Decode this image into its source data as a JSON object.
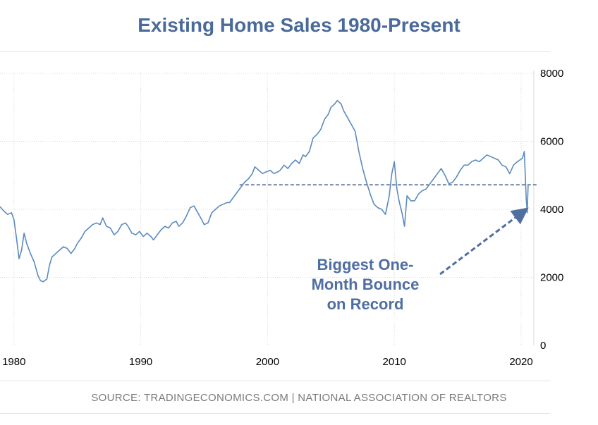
{
  "chart_data": {
    "type": "line",
    "title": "Existing Home Sales 1980-Present",
    "source": "SOURCE: TRADINGECONOMICS.COM | NATIONAL ASSOCIATION OF REALTORS",
    "annotation": [
      "Biggest One-",
      "Month Bounce",
      "on Record"
    ],
    "xlim": [
      1978.9,
      2021.0
    ],
    "ylim": [
      0,
      8000
    ],
    "x_ticks": [
      1980,
      1990,
      2000,
      2010,
      2020
    ],
    "y_ticks": [
      0,
      2000,
      4000,
      6000,
      8000
    ],
    "y_axis_side": "right",
    "grid": true,
    "reference_line": {
      "value": 4720,
      "from_x": 1997.8,
      "style": "dashed"
    },
    "colors": {
      "line": "#5b8bbd",
      "title": "#4a6a9b",
      "annotation": "#4f6ea1",
      "grid": "#d9d9d9",
      "axis_text": "#000000",
      "source": "#7a7a7a"
    },
    "series": [
      {
        "x": [
          1978.9,
          1979.2,
          1979.5,
          1979.8,
          1980.0,
          1980.2,
          1980.4,
          1980.6,
          1980.8,
          1981.0,
          1981.3,
          1981.6,
          1981.9,
          1982.1,
          1982.3,
          1982.6,
          1982.8,
          1983.0,
          1983.3,
          1983.6,
          1983.9,
          1984.2,
          1984.5,
          1984.8,
          1985.0,
          1985.3,
          1985.6,
          1985.9,
          1986.2,
          1986.5,
          1986.8,
          1987.0,
          1987.3,
          1987.6,
          1987.9,
          1988.2,
          1988.5,
          1988.8,
          1989.0,
          1989.3,
          1989.6,
          1989.9,
          1990.2,
          1990.5,
          1990.8,
          1991.0,
          1991.3,
          1991.6,
          1991.9,
          1992.2,
          1992.5,
          1992.8,
          1993.0,
          1993.3,
          1993.6,
          1993.9,
          1994.2,
          1994.5,
          1994.8,
          1995.0,
          1995.3,
          1995.6,
          1995.9,
          1996.2,
          1996.5,
          1996.8,
          1997.0,
          1997.3,
          1997.6,
          1997.9,
          1998.2,
          1998.5,
          1998.8,
          1999.0,
          1999.3,
          1999.6,
          1999.9,
          2000.2,
          2000.5,
          2000.8,
          2001.0,
          2001.3,
          2001.6,
          2001.9,
          2002.2,
          2002.5,
          2002.8,
          2003.0,
          2003.3,
          2003.6,
          2003.9,
          2004.2,
          2004.5,
          2004.8,
          2005.0,
          2005.3,
          2005.5,
          2005.8,
          2006.0,
          2006.3,
          2006.6,
          2006.9,
          2007.2,
          2007.5,
          2007.8,
          2008.1,
          2008.4,
          2008.7,
          2009.0,
          2009.3,
          2009.6,
          2009.8,
          2010.0,
          2010.2,
          2010.4,
          2010.6,
          2010.8,
          2011.0,
          2011.3,
          2011.6,
          2011.9,
          2012.2,
          2012.5,
          2012.8,
          2013.1,
          2013.4,
          2013.7,
          2014.0,
          2014.3,
          2014.6,
          2014.9,
          2015.2,
          2015.5,
          2015.8,
          2016.1,
          2016.4,
          2016.7,
          2017.0,
          2017.3,
          2017.6,
          2017.9,
          2018.2,
          2018.5,
          2018.8,
          2019.1,
          2019.4,
          2019.7,
          2019.9,
          2020.1,
          2020.25,
          2020.4,
          2020.48,
          2020.55
        ],
        "values": [
          4080,
          3950,
          3850,
          3900,
          3700,
          3150,
          2550,
          2800,
          3300,
          3000,
          2700,
          2450,
          2050,
          1900,
          1870,
          1950,
          2350,
          2600,
          2700,
          2800,
          2900,
          2850,
          2700,
          2850,
          3000,
          3150,
          3350,
          3450,
          3550,
          3600,
          3550,
          3750,
          3500,
          3450,
          3250,
          3350,
          3550,
          3600,
          3500,
          3300,
          3250,
          3350,
          3200,
          3300,
          3200,
          3100,
          3250,
          3400,
          3500,
          3450,
          3600,
          3650,
          3500,
          3600,
          3800,
          4050,
          4100,
          3900,
          3700,
          3550,
          3600,
          3900,
          4000,
          4100,
          4150,
          4200,
          4200,
          4350,
          4500,
          4650,
          4800,
          4900,
          5050,
          5250,
          5150,
          5050,
          5100,
          5150,
          5050,
          5100,
          5150,
          5300,
          5200,
          5350,
          5450,
          5350,
          5600,
          5550,
          5700,
          6100,
          6200,
          6350,
          6650,
          6800,
          7000,
          7100,
          7200,
          7100,
          6900,
          6700,
          6500,
          6300,
          5700,
          5200,
          4800,
          4450,
          4150,
          4050,
          4000,
          3850,
          4400,
          5050,
          5400,
          4600,
          4200,
          3900,
          3500,
          4400,
          4250,
          4250,
          4450,
          4550,
          4600,
          4750,
          4900,
          5050,
          5200,
          5000,
          4750,
          4800,
          4950,
          5150,
          5300,
          5300,
          5400,
          5450,
          5400,
          5500,
          5600,
          5550,
          5500,
          5450,
          5300,
          5250,
          5050,
          5300,
          5400,
          5450,
          5500,
          5700,
          4300,
          3900,
          4700
        ]
      }
    ]
  }
}
